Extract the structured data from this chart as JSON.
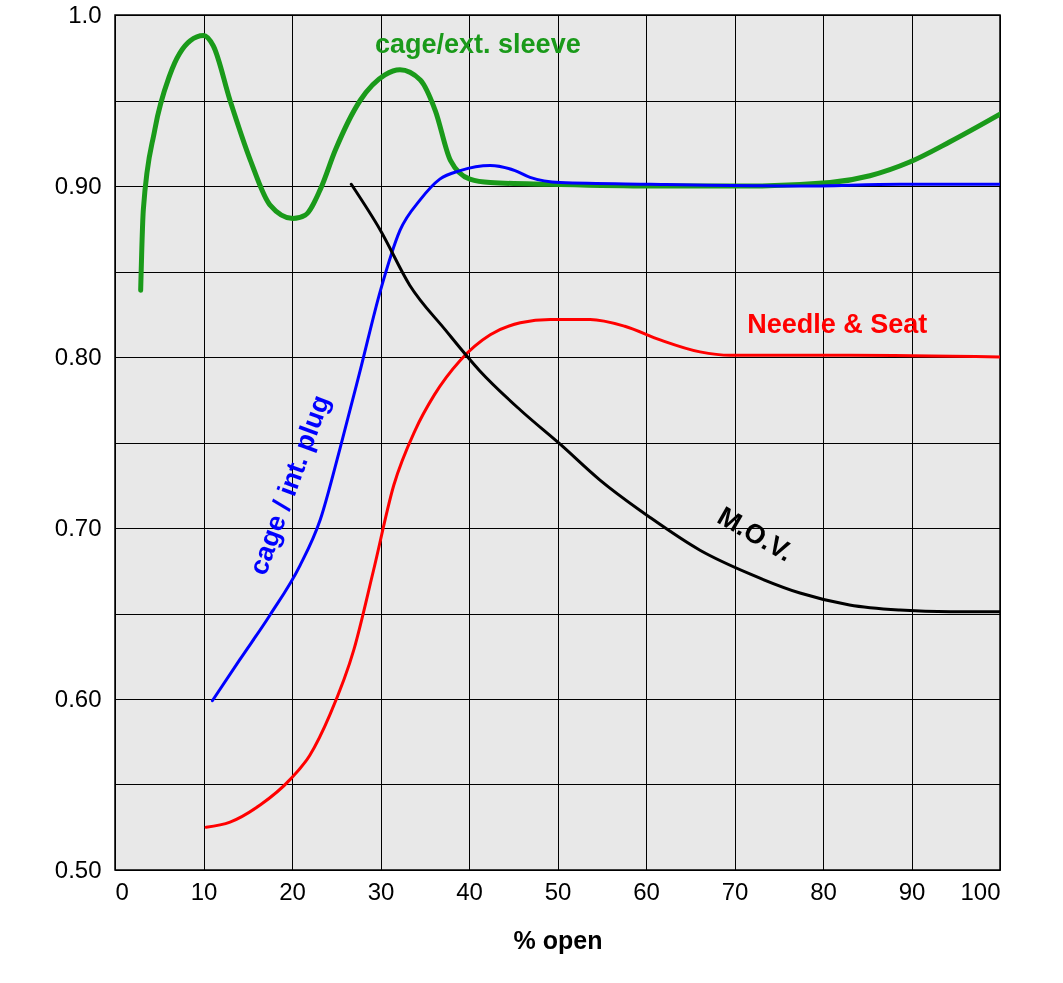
{
  "chart_data": {
    "type": "line",
    "xlabel": "% open",
    "xlim": [
      0,
      100
    ],
    "xticks": [
      0,
      10,
      20,
      30,
      40,
      50,
      60,
      70,
      80,
      90,
      100
    ],
    "ylim": [
      0.5,
      1.0
    ],
    "yticks": [
      {
        "value": 0.5,
        "label": "0.50"
      },
      {
        "value": 0.55,
        "label": null
      },
      {
        "value": 0.6,
        "label": "0.60"
      },
      {
        "value": 0.65,
        "label": null
      },
      {
        "value": 0.7,
        "label": "0.70"
      },
      {
        "value": 0.75,
        "label": null
      },
      {
        "value": 0.8,
        "label": "0.80"
      },
      {
        "value": 0.85,
        "label": null
      },
      {
        "value": 0.9,
        "label": "0.90"
      },
      {
        "value": 0.95,
        "label": null
      },
      {
        "value": 1.0,
        "label": "1.0"
      }
    ],
    "grid": true,
    "marker": "none",
    "line_style": "solid",
    "series": [
      {
        "name": "cage/ext. sleeve",
        "color": "#1a9a1a",
        "x": [
          2.9,
          3.2,
          4.5,
          6.2,
          8.5,
          10,
          11.1,
          13,
          15.3,
          17.5,
          20.1,
          21.5,
          23.2,
          24.9,
          27.7,
          30.5,
          32.2,
          34.5,
          36.2,
          37.9,
          40.1,
          42.4,
          49.2,
          60.5,
          71.8,
          80.8,
          85.3,
          89.8,
          94.4,
          100
        ],
        "values": [
          0.839,
          0.886,
          0.933,
          0.965,
          0.985,
          0.988,
          0.982,
          0.95,
          0.915,
          0.889,
          0.881,
          0.883,
          0.898,
          0.921,
          0.95,
          0.965,
          0.968,
          0.962,
          0.944,
          0.915,
          0.904,
          0.902,
          0.901,
          0.9,
          0.9,
          0.902,
          0.906,
          0.914,
          0.926,
          0.942
        ]
      },
      {
        "name": "cage / int. plug",
        "color": "#0000ff",
        "x": [
          11,
          14.1,
          17.5,
          20.9,
          23.2,
          25.4,
          27.7,
          30,
          32.2,
          34.5,
          36.7,
          39,
          42.4,
          45.2,
          46.9,
          50.3,
          60.5,
          77.4,
          88.7,
          100
        ],
        "values": [
          0.599,
          0.623,
          0.649,
          0.678,
          0.705,
          0.746,
          0.792,
          0.839,
          0.874,
          0.892,
          0.904,
          0.909,
          0.912,
          0.909,
          0.905,
          0.902,
          0.901,
          0.9,
          0.901,
          0.901
        ]
      },
      {
        "name": "Needle & Seat",
        "color": "#ff0000",
        "x": [
          10.3,
          13,
          16.4,
          19.8,
          22,
          24.3,
          27,
          29.2,
          31.5,
          33.9,
          36.1,
          39,
          42.4,
          45.8,
          49.2,
          53.7,
          57.6,
          61.6,
          66.1,
          69.5,
          83,
          100
        ],
        "values": [
          0.525,
          0.528,
          0.538,
          0.553,
          0.567,
          0.591,
          0.629,
          0.675,
          0.725,
          0.757,
          0.778,
          0.798,
          0.813,
          0.82,
          0.822,
          0.822,
          0.818,
          0.81,
          0.803,
          0.801,
          0.801,
          0.8
        ]
      },
      {
        "name": "M.O.V.",
        "color": "#000000",
        "x": [
          26.7,
          30,
          33.3,
          37.3,
          41.2,
          45.8,
          50.3,
          54.8,
          60.5,
          66.1,
          71.8,
          77.4,
          83,
          88.7,
          94.4,
          100
        ],
        "values": [
          0.901,
          0.874,
          0.842,
          0.816,
          0.792,
          0.769,
          0.749,
          0.728,
          0.706,
          0.687,
          0.673,
          0.662,
          0.655,
          0.652,
          0.651,
          0.651
        ]
      }
    ]
  }
}
